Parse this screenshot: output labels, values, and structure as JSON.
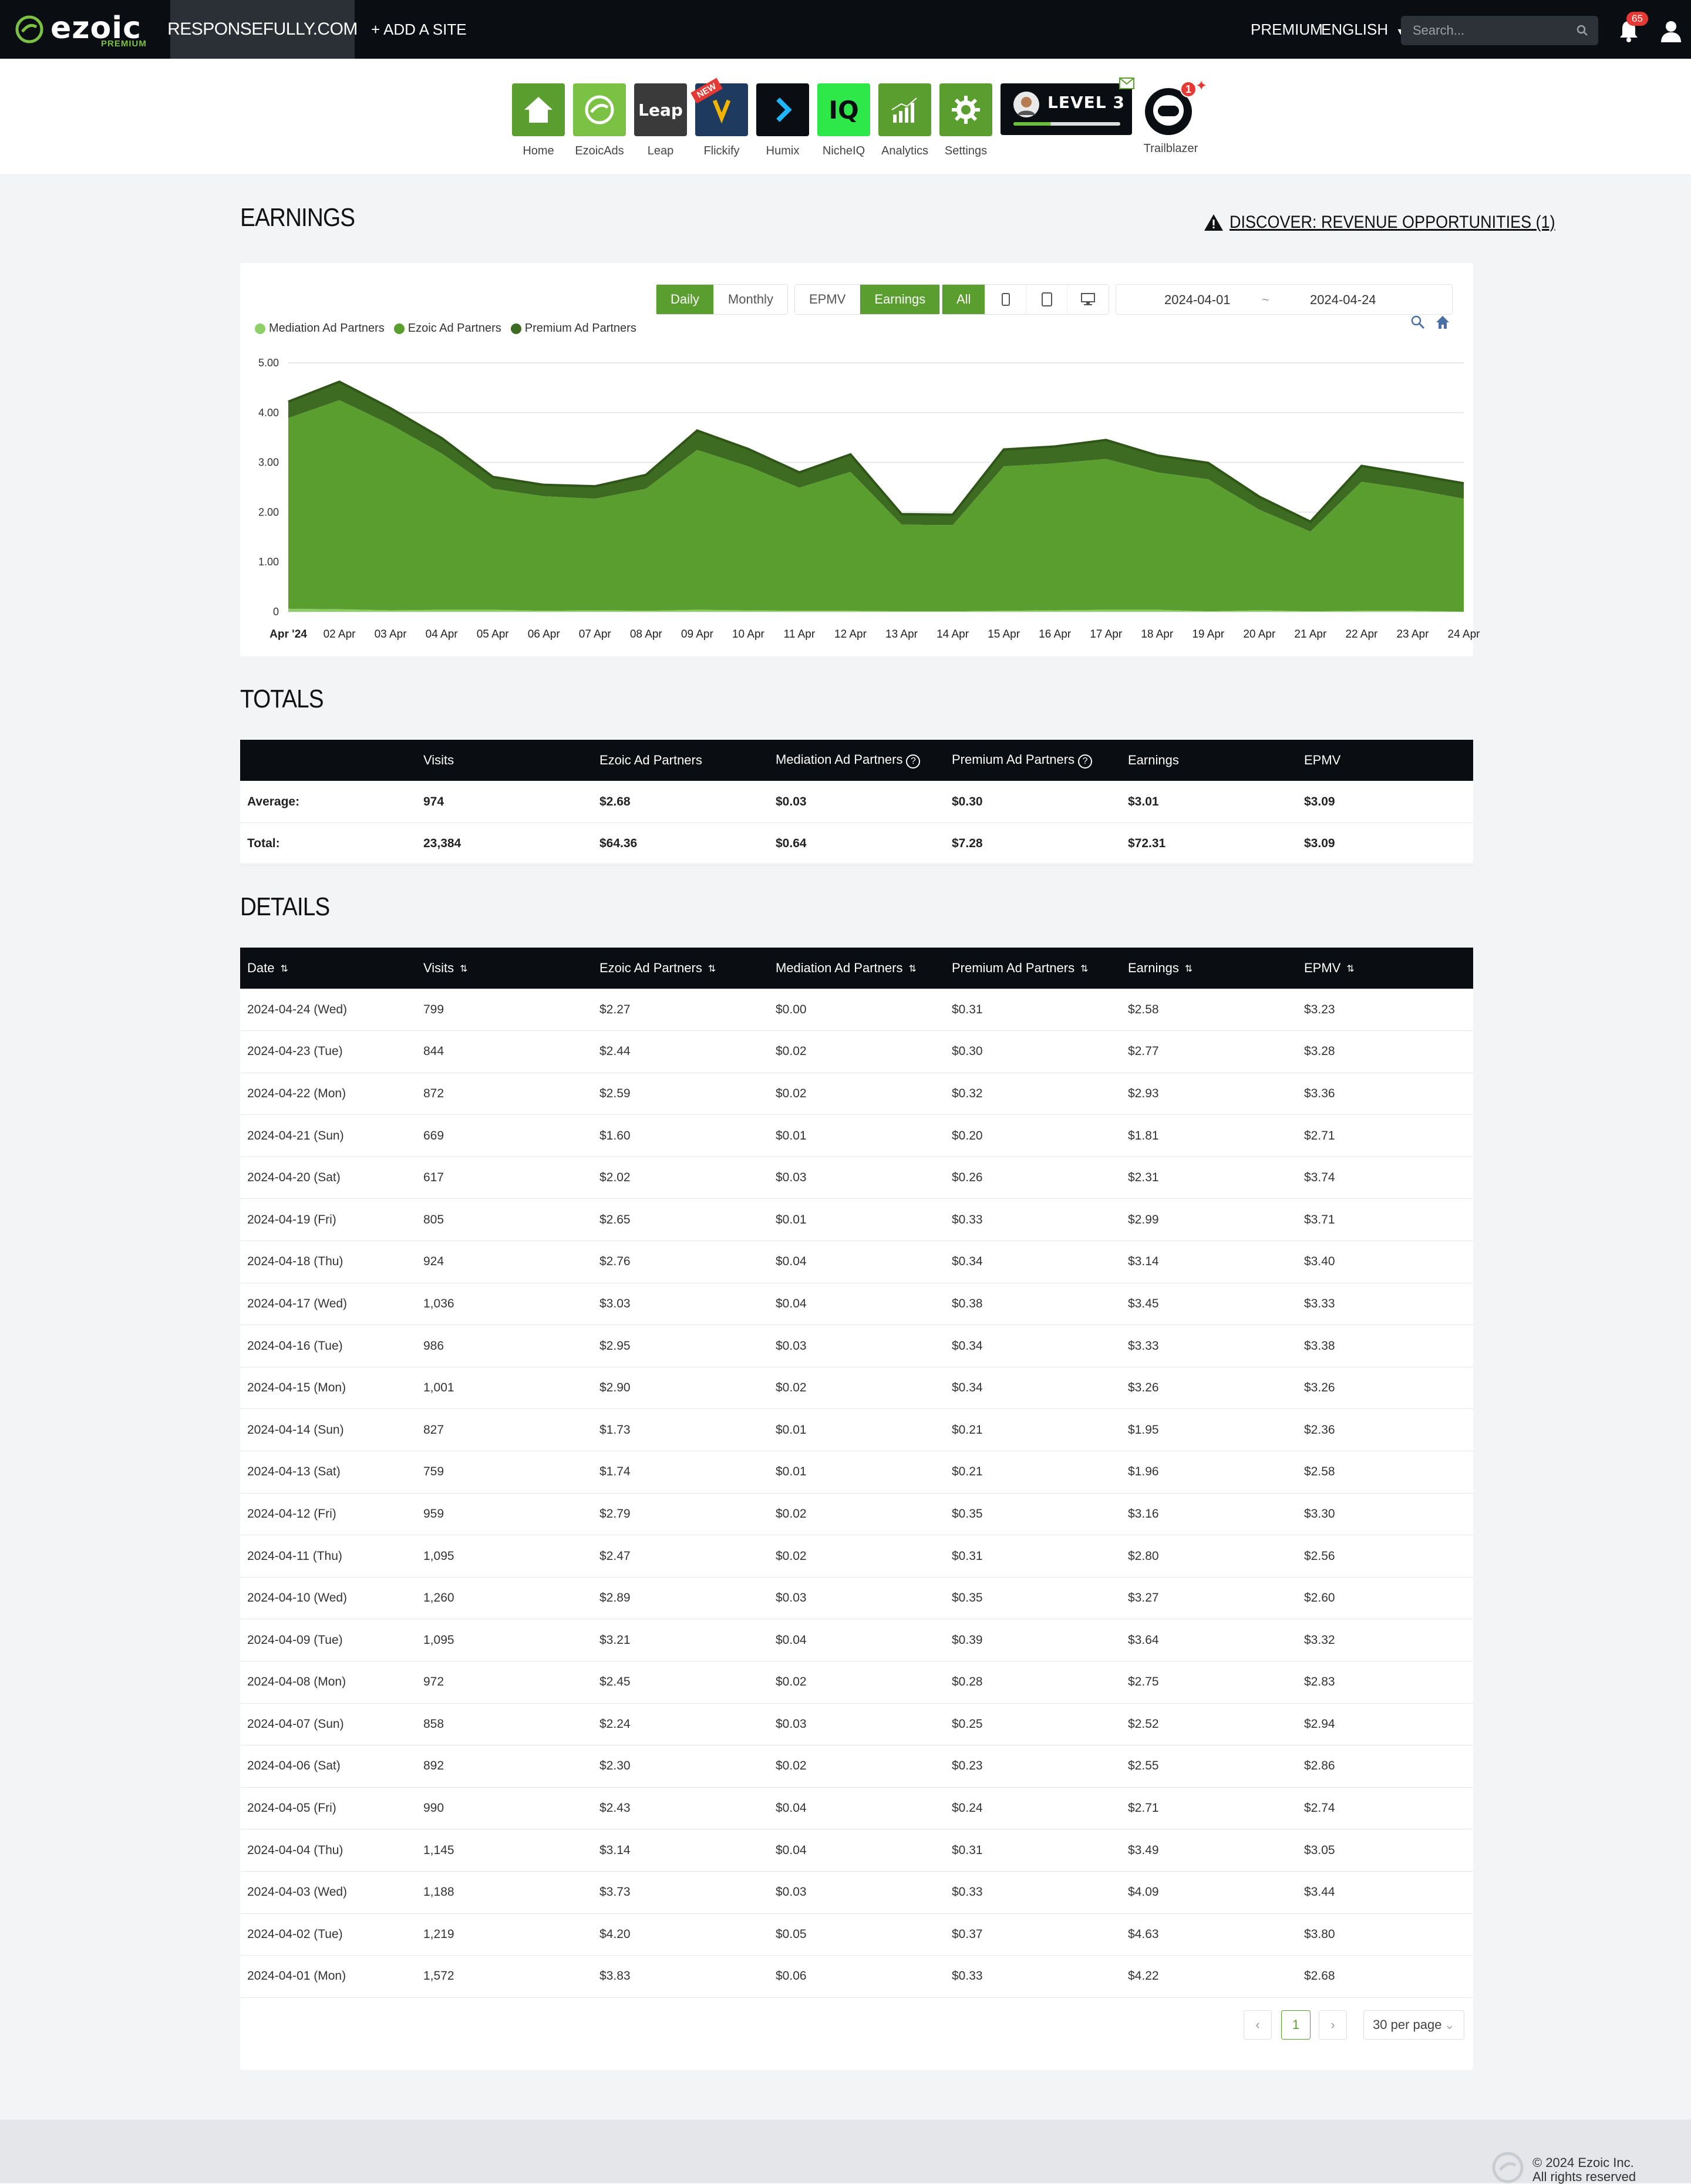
{
  "nav": {
    "logo_word": "ezoic",
    "logo_sub": "PREMIUM",
    "site": "RESPONSEFULLY.COM",
    "add_site": "+ ADD A SITE",
    "premium": "PREMIUM",
    "language": "ENGLISH",
    "search_placeholder": "Search...",
    "notifications": "65"
  },
  "apps": [
    {
      "label": "Home",
      "color": "#5a9e2f"
    },
    {
      "label": "EzoicAds",
      "color": "#7bc143"
    },
    {
      "label": "Leap",
      "color": "#3a3a3a",
      "text": "Leap"
    },
    {
      "label": "Flickify",
      "color": "#1e3a5f",
      "badge": "NEW"
    },
    {
      "label": "Humix",
      "color": "#0a0d12"
    },
    {
      "label": "NicheIQ",
      "color": "#2ee84a",
      "text": "IQ"
    },
    {
      "label": "Analytics",
      "color": "#5a9e2f"
    },
    {
      "label": "Settings",
      "color": "#5a9e2f"
    }
  ],
  "level": {
    "text": "LEVEL 3",
    "progress": 0.35
  },
  "trailblazer": {
    "label": "Trailblazer",
    "badge": "1"
  },
  "earnings": {
    "title": "EARNINGS",
    "discover": "DISCOVER: REVENUE OPPORTUNITIES (1)",
    "controls": {
      "daily": "Daily",
      "monthly": "Monthly",
      "epmv": "EPMV",
      "earnings": "Earnings",
      "all": "All",
      "start_date": "2024-04-01",
      "date_sep": "~",
      "end_date": "2024-04-24"
    }
  },
  "chart_data": {
    "type": "area",
    "stacked": true,
    "ylim": [
      0,
      5
    ],
    "yticks": [
      "5.00",
      "4.00",
      "3.00",
      "2.00",
      "1.00",
      "0"
    ],
    "categories": [
      "Apr '24",
      "02 Apr",
      "03 Apr",
      "04 Apr",
      "05 Apr",
      "06 Apr",
      "07 Apr",
      "08 Apr",
      "09 Apr",
      "10 Apr",
      "11 Apr",
      "12 Apr",
      "13 Apr",
      "14 Apr",
      "15 Apr",
      "16 Apr",
      "17 Apr",
      "18 Apr",
      "19 Apr",
      "20 Apr",
      "21 Apr",
      "22 Apr",
      "23 Apr",
      "24 Apr"
    ],
    "series": [
      {
        "name": "Mediation Ad Partners",
        "color": "#8fcf6a",
        "values": [
          0.06,
          0.05,
          0.03,
          0.04,
          0.04,
          0.02,
          0.03,
          0.02,
          0.04,
          0.03,
          0.02,
          0.02,
          0.01,
          0.01,
          0.02,
          0.03,
          0.04,
          0.04,
          0.01,
          0.03,
          0.01,
          0.02,
          0.02,
          0.0
        ]
      },
      {
        "name": "Ezoic Ad Partners",
        "color": "#5a9e2f",
        "values": [
          3.83,
          4.2,
          3.73,
          3.14,
          2.43,
          2.3,
          2.24,
          2.45,
          3.21,
          2.89,
          2.47,
          2.79,
          1.74,
          1.73,
          2.9,
          2.95,
          3.03,
          2.76,
          2.65,
          2.02,
          1.6,
          2.59,
          2.44,
          2.27
        ]
      },
      {
        "name": "Premium Ad Partners",
        "color": "#3d6b22",
        "values": [
          0.33,
          0.37,
          0.33,
          0.31,
          0.24,
          0.23,
          0.25,
          0.28,
          0.39,
          0.35,
          0.31,
          0.35,
          0.21,
          0.21,
          0.34,
          0.34,
          0.38,
          0.34,
          0.33,
          0.26,
          0.2,
          0.32,
          0.3,
          0.31
        ]
      }
    ]
  },
  "totals": {
    "title": "TOTALS",
    "headers": [
      "",
      "Visits",
      "Ezoic Ad Partners",
      "Mediation Ad Partners",
      "Premium Ad Partners",
      "Earnings",
      "EPMV"
    ],
    "rows": [
      [
        "Average:",
        "974",
        "$2.68",
        "$0.03",
        "$0.30",
        "$3.01",
        "$3.09"
      ],
      [
        "Total:",
        "23,384",
        "$64.36",
        "$0.64",
        "$7.28",
        "$72.31",
        "$3.09"
      ]
    ]
  },
  "details": {
    "title": "DETAILS",
    "headers": [
      "Date",
      "Visits",
      "Ezoic Ad Partners",
      "Mediation Ad Partners",
      "Premium Ad Partners",
      "Earnings",
      "EPMV"
    ],
    "rows": [
      [
        "2024-04-24 (Wed)",
        "799",
        "$2.27",
        "$0.00",
        "$0.31",
        "$2.58",
        "$3.23"
      ],
      [
        "2024-04-23 (Tue)",
        "844",
        "$2.44",
        "$0.02",
        "$0.30",
        "$2.77",
        "$3.28"
      ],
      [
        "2024-04-22 (Mon)",
        "872",
        "$2.59",
        "$0.02",
        "$0.32",
        "$2.93",
        "$3.36"
      ],
      [
        "2024-04-21 (Sun)",
        "669",
        "$1.60",
        "$0.01",
        "$0.20",
        "$1.81",
        "$2.71"
      ],
      [
        "2024-04-20 (Sat)",
        "617",
        "$2.02",
        "$0.03",
        "$0.26",
        "$2.31",
        "$3.74"
      ],
      [
        "2024-04-19 (Fri)",
        "805",
        "$2.65",
        "$0.01",
        "$0.33",
        "$2.99",
        "$3.71"
      ],
      [
        "2024-04-18 (Thu)",
        "924",
        "$2.76",
        "$0.04",
        "$0.34",
        "$3.14",
        "$3.40"
      ],
      [
        "2024-04-17 (Wed)",
        "1,036",
        "$3.03",
        "$0.04",
        "$0.38",
        "$3.45",
        "$3.33"
      ],
      [
        "2024-04-16 (Tue)",
        "986",
        "$2.95",
        "$0.03",
        "$0.34",
        "$3.33",
        "$3.38"
      ],
      [
        "2024-04-15 (Mon)",
        "1,001",
        "$2.90",
        "$0.02",
        "$0.34",
        "$3.26",
        "$3.26"
      ],
      [
        "2024-04-14 (Sun)",
        "827",
        "$1.73",
        "$0.01",
        "$0.21",
        "$1.95",
        "$2.36"
      ],
      [
        "2024-04-13 (Sat)",
        "759",
        "$1.74",
        "$0.01",
        "$0.21",
        "$1.96",
        "$2.58"
      ],
      [
        "2024-04-12 (Fri)",
        "959",
        "$2.79",
        "$0.02",
        "$0.35",
        "$3.16",
        "$3.30"
      ],
      [
        "2024-04-11 (Thu)",
        "1,095",
        "$2.47",
        "$0.02",
        "$0.31",
        "$2.80",
        "$2.56"
      ],
      [
        "2024-04-10 (Wed)",
        "1,260",
        "$2.89",
        "$0.03",
        "$0.35",
        "$3.27",
        "$2.60"
      ],
      [
        "2024-04-09 (Tue)",
        "1,095",
        "$3.21",
        "$0.04",
        "$0.39",
        "$3.64",
        "$3.32"
      ],
      [
        "2024-04-08 (Mon)",
        "972",
        "$2.45",
        "$0.02",
        "$0.28",
        "$2.75",
        "$2.83"
      ],
      [
        "2024-04-07 (Sun)",
        "858",
        "$2.24",
        "$0.03",
        "$0.25",
        "$2.52",
        "$2.94"
      ],
      [
        "2024-04-06 (Sat)",
        "892",
        "$2.30",
        "$0.02",
        "$0.23",
        "$2.55",
        "$2.86"
      ],
      [
        "2024-04-05 (Fri)",
        "990",
        "$2.43",
        "$0.04",
        "$0.24",
        "$2.71",
        "$2.74"
      ],
      [
        "2024-04-04 (Thu)",
        "1,145",
        "$3.14",
        "$0.04",
        "$0.31",
        "$3.49",
        "$3.05"
      ],
      [
        "2024-04-03 (Wed)",
        "1,188",
        "$3.73",
        "$0.03",
        "$0.33",
        "$4.09",
        "$3.44"
      ],
      [
        "2024-04-02 (Tue)",
        "1,219",
        "$4.20",
        "$0.05",
        "$0.37",
        "$4.63",
        "$3.80"
      ],
      [
        "2024-04-01 (Mon)",
        "1,572",
        "$3.83",
        "$0.06",
        "$0.33",
        "$4.22",
        "$2.68"
      ]
    ]
  },
  "pagination": {
    "page": "1",
    "per_page": "30 per page"
  },
  "footer": {
    "line1": "© 2024 Ezoic Inc.",
    "line2": "All rights reserved"
  }
}
